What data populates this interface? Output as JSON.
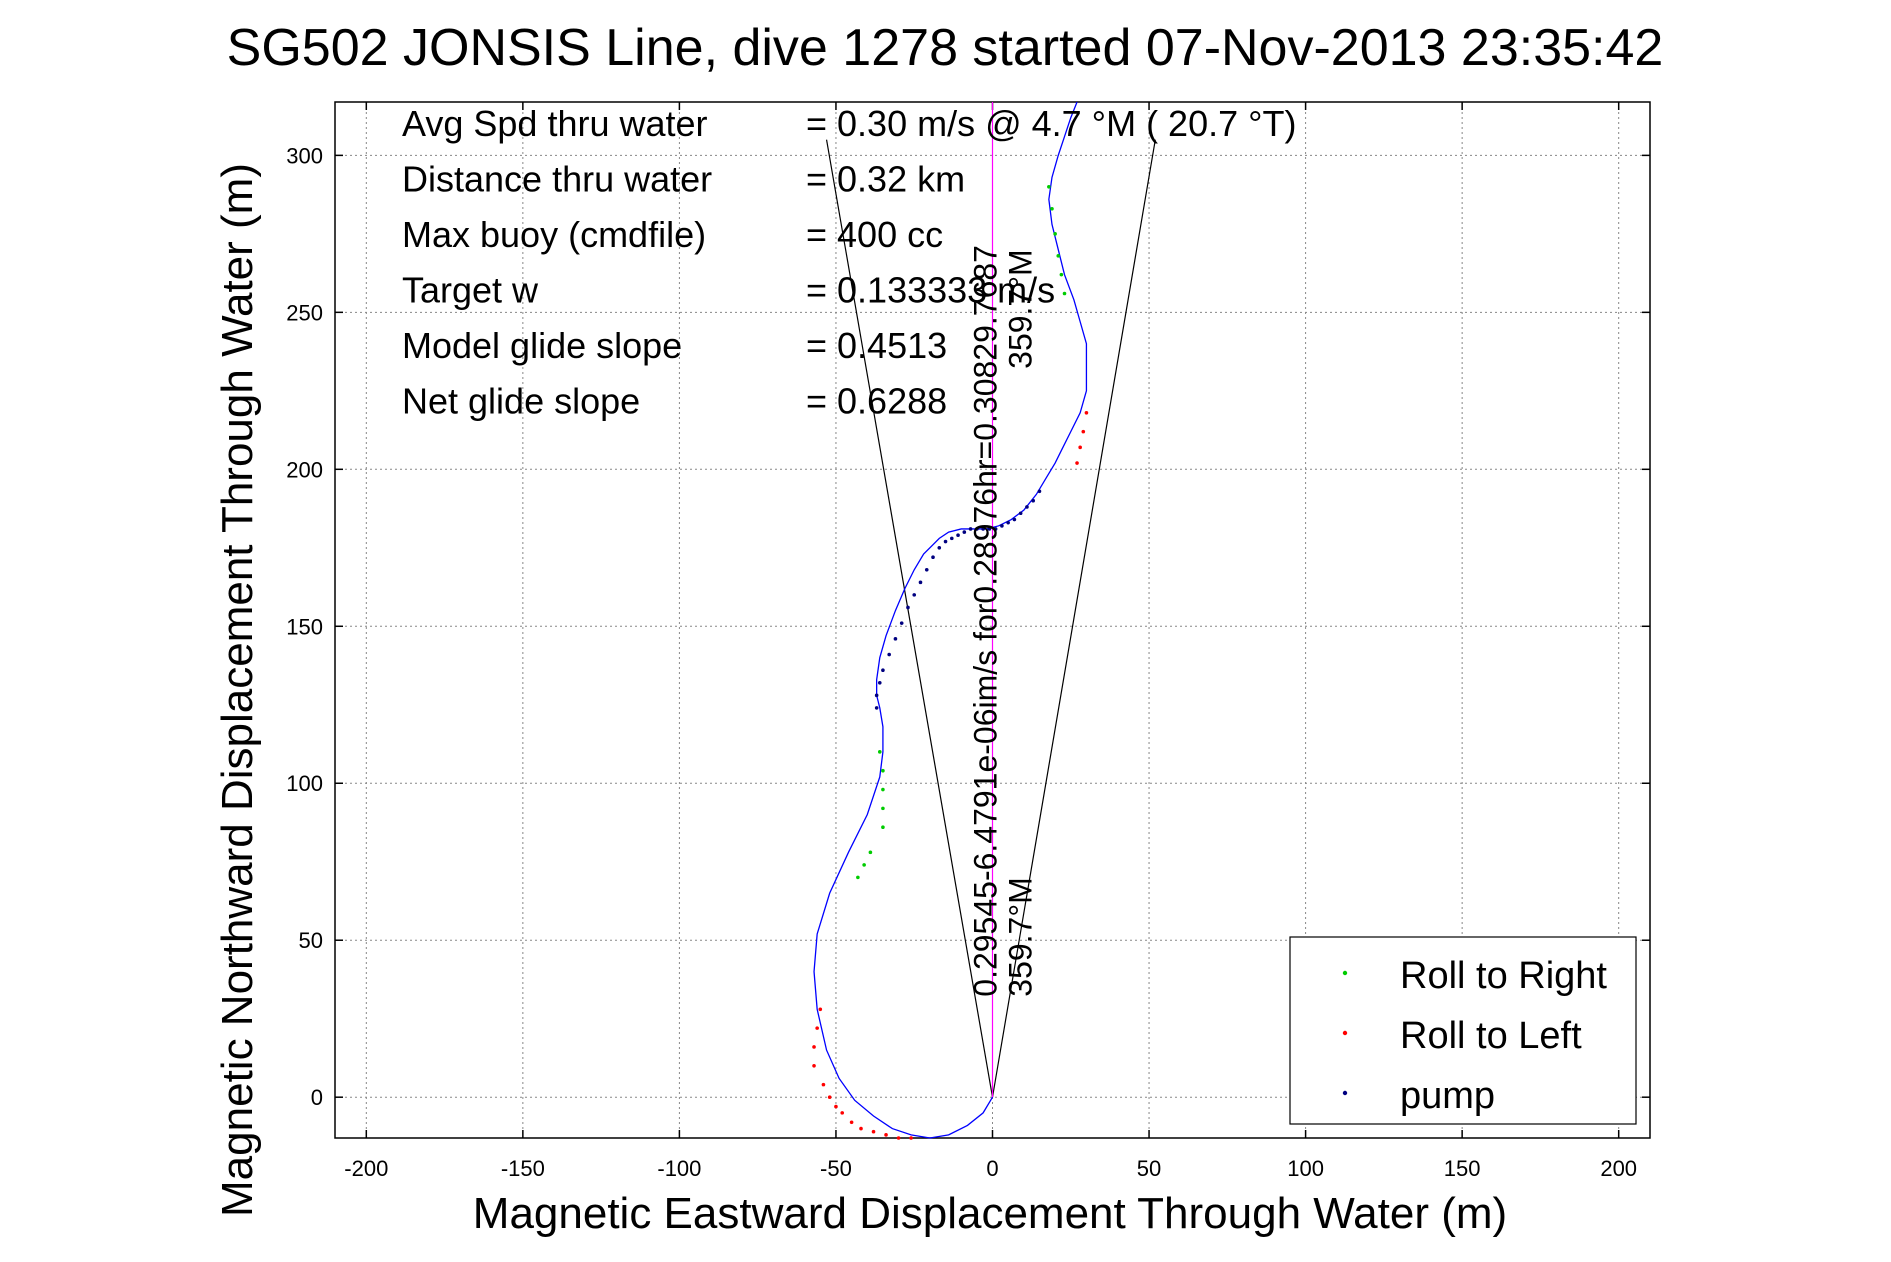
{
  "chart_data": {
    "type": "line",
    "title": "SG502 JONSIS Line, dive 1278 started 07-Nov-2013 23:35:42",
    "xlabel": "Magnetic Eastward Displacement Through Water (m)",
    "ylabel": "Magnetic Northward Displacement Through Water (m)",
    "xlim": [
      -210,
      210
    ],
    "ylim": [
      -13,
      317
    ],
    "xticks": [
      -200,
      -150,
      -100,
      -50,
      0,
      50,
      100,
      150,
      200
    ],
    "yticks": [
      0,
      50,
      100,
      150,
      200,
      250,
      300
    ],
    "grid": true,
    "legend_placement": "bottom-right",
    "stats": [
      {
        "label": "Avg Spd thru water",
        "value": "=  0.30 m/s @   4.7 °M ( 20.7 °T)"
      },
      {
        "label": "Distance thru water",
        "value": "=  0.32 km"
      },
      {
        "label": "Max buoy (cmdfile)",
        "value": "= 400 cc"
      },
      {
        "label": "Target w",
        "value": "= 0.133333 m/s"
      },
      {
        "label": "Model glide slope",
        "value": "= 0.4513"
      },
      {
        "label": "Net glide slope",
        "value": "= 0.6288"
      }
    ],
    "rotated_annotations": [
      {
        "text": "0.29545-6.4791e-06im/s for0.28976hr=0.30829.7687",
        "x": 0,
        "y": 32
      },
      {
        "text": "359.7°M",
        "x": 6,
        "y": 32
      },
      {
        "text": "359.7°M",
        "x": 6,
        "y": 232
      }
    ],
    "series": [
      {
        "name": "track",
        "color": "#0000ff",
        "x": [
          0,
          -3,
          -8,
          -14,
          -20,
          -26,
          -32,
          -38,
          -44,
          -49,
          -53,
          -56,
          -57,
          -56,
          -52,
          -46,
          -40,
          -36,
          -35,
          -35,
          -36,
          -37,
          -37,
          -36,
          -34,
          -31,
          -28,
          -25,
          -22,
          -19,
          -17,
          -14,
          -10,
          -6,
          -2,
          2,
          6,
          10,
          14,
          17,
          20,
          22,
          25,
          28,
          30,
          30,
          30,
          28,
          26,
          23,
          21,
          19,
          18,
          19,
          21,
          23,
          25,
          27
        ],
        "y": [
          0,
          -5,
          -9,
          -12,
          -13,
          -12,
          -10,
          -6,
          -1,
          6,
          15,
          28,
          40,
          52,
          65,
          78,
          90,
          102,
          110,
          118,
          124,
          128,
          133,
          140,
          147,
          155,
          162,
          168,
          173,
          176,
          178,
          180,
          181,
          181,
          181,
          182,
          184,
          187,
          192,
          197,
          202,
          206,
          212,
          218,
          225,
          232,
          240,
          247,
          254,
          262,
          270,
          278,
          286,
          293,
          300,
          306,
          312,
          317
        ]
      },
      {
        "name": "Roll to Right",
        "color": "#00cc00",
        "x": [
          -36,
          -35,
          -35,
          -35,
          -35,
          -39,
          -41,
          -43,
          18,
          19,
          20,
          21,
          22,
          23
        ],
        "y": [
          110,
          104,
          98,
          92,
          86,
          78,
          74,
          70,
          290,
          283,
          275,
          268,
          262,
          256
        ]
      },
      {
        "name": "Roll to Left",
        "color": "#ff0000",
        "x": [
          -57,
          -57,
          -56,
          -55,
          -54,
          -52,
          -50,
          -48,
          -45,
          -42,
          -38,
          -34,
          -30,
          -26,
          27,
          28,
          29,
          30
        ],
        "y": [
          10,
          16,
          22,
          28,
          4,
          0,
          -3,
          -5,
          -8,
          -10,
          -11,
          -12,
          -13,
          -13,
          202,
          207,
          212,
          218
        ]
      },
      {
        "name": "pump",
        "color": "#000080",
        "x": [
          -37,
          -37,
          -36,
          -35,
          -33,
          -31,
          -29,
          -27,
          -25,
          -23,
          -21,
          -19,
          -17,
          -15,
          -13,
          -11,
          -9,
          -7,
          -5,
          -3,
          -1,
          1,
          3,
          5,
          7,
          9,
          11,
          13,
          15
        ],
        "y": [
          124,
          128,
          132,
          136,
          141,
          146,
          151,
          156,
          160,
          164,
          168,
          172,
          175,
          177,
          178,
          179,
          180,
          181,
          181,
          181,
          181,
          181,
          182,
          183,
          184,
          186,
          188,
          190,
          193
        ]
      }
    ],
    "reference_lines": [
      {
        "color": "#000000",
        "x": [
          0,
          -53
        ],
        "y": [
          0,
          305
        ]
      },
      {
        "color": "#000000",
        "x": [
          0,
          52
        ],
        "y": [
          0,
          305
        ]
      },
      {
        "color": "#ff00ff",
        "x": [
          0,
          0
        ],
        "y": [
          0,
          317
        ]
      }
    ]
  },
  "legend": {
    "items": [
      {
        "label": "Roll to Right",
        "color": "#00cc00"
      },
      {
        "label": "Roll to Left",
        "color": "#ff0000"
      },
      {
        "label": "pump",
        "color": "#000080"
      }
    ]
  }
}
